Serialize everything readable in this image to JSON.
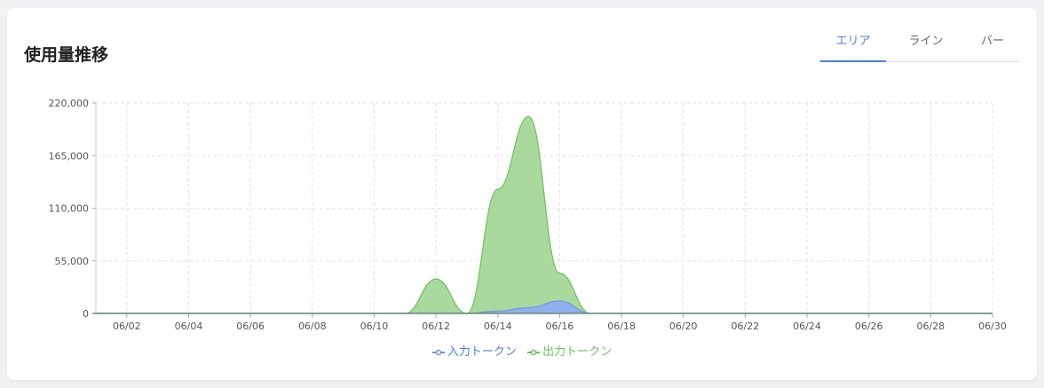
{
  "card": {
    "title": "使用量推移"
  },
  "tabs": [
    {
      "label": "エリア",
      "active": true
    },
    {
      "label": "ライン",
      "active": false
    },
    {
      "label": "バー",
      "active": false
    }
  ],
  "colors": {
    "input": "#6e93e8",
    "output": "#6cc160",
    "axis": "#6b8d7c",
    "active_tab": "#4a7fe0"
  },
  "chart_data": {
    "type": "area",
    "ylim": [
      0,
      220000
    ],
    "yticks": [
      "0",
      "55,000",
      "110,000",
      "165,000",
      "220,000"
    ],
    "xticks": [
      "06/02",
      "06/04",
      "06/06",
      "06/08",
      "06/10",
      "06/12",
      "06/14",
      "06/16",
      "06/18",
      "06/20",
      "06/22",
      "06/24",
      "06/26",
      "06/28",
      "06/30"
    ],
    "x": [
      "06/01",
      "06/02",
      "06/03",
      "06/04",
      "06/05",
      "06/06",
      "06/07",
      "06/08",
      "06/09",
      "06/10",
      "06/11",
      "06/12",
      "06/13",
      "06/14",
      "06/15",
      "06/16",
      "06/17",
      "06/18",
      "06/19",
      "06/20",
      "06/21",
      "06/22",
      "06/23",
      "06/24",
      "06/25",
      "06/26",
      "06/27",
      "06/28",
      "06/29",
      "06/30"
    ],
    "series": [
      {
        "name": "出力トークン",
        "values": [
          0,
          0,
          0,
          0,
          0,
          0,
          0,
          0,
          0,
          0,
          0,
          36000,
          0,
          130000,
          206000,
          42000,
          0,
          0,
          0,
          0,
          0,
          0,
          0,
          0,
          0,
          0,
          0,
          0,
          0,
          0
        ]
      },
      {
        "name": "入力トークン",
        "values": [
          0,
          0,
          0,
          0,
          0,
          0,
          0,
          0,
          0,
          0,
          0,
          0,
          0,
          2500,
          6000,
          13000,
          0,
          0,
          0,
          0,
          0,
          0,
          0,
          0,
          0,
          0,
          0,
          0,
          0,
          0
        ]
      }
    ],
    "legend": [
      "入力トークン",
      "出力トークン"
    ],
    "grid": true
  }
}
